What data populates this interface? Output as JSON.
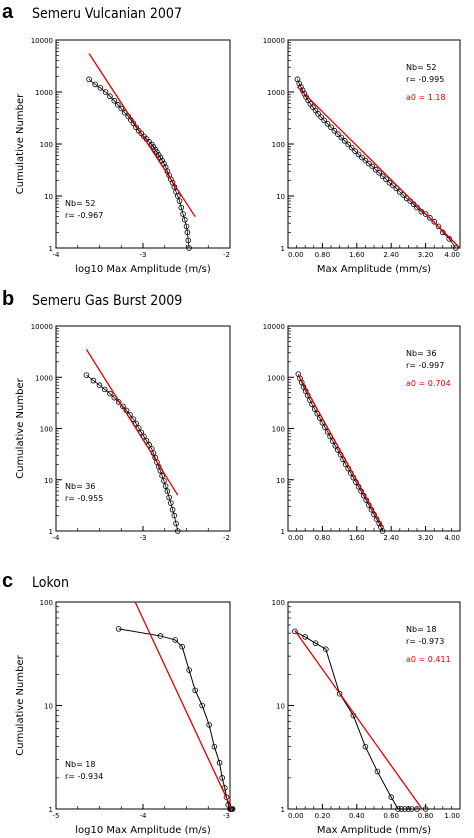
{
  "panels": [
    {
      "letter": "a",
      "title": "Semeru Vulcanian 2007"
    },
    {
      "letter": "b",
      "title": "Semeru Gas Burst 2009"
    },
    {
      "letter": "c",
      "title": "Lokon"
    }
  ],
  "colors": {
    "fit_line": "#e00000",
    "data": "#000000",
    "a0_text": "#e00000"
  },
  "chart_data": [
    {
      "type": "scatter",
      "panel": "a",
      "xscale": "log10",
      "yscale": "log",
      "xlabel": "log10 Max Amplitude (m/s)",
      "ylabel": "Cumulative Number",
      "xlim": [
        -4,
        -2
      ],
      "ylim": [
        1,
        10000
      ],
      "xticks": [
        -4,
        -3,
        -2
      ],
      "xtick_labels": [
        "-4",
        "-3",
        "-2"
      ],
      "yticks": [
        1,
        10,
        100,
        1000,
        10000
      ],
      "ytick_labels": [
        "1",
        "10",
        "100",
        "1000",
        "10000"
      ],
      "stats": [
        "Nb= 52",
        "r= -0.967"
      ],
      "series": [
        {
          "style": "markers",
          "x": [
            -3.62,
            -3.55,
            -3.49,
            -3.43,
            -3.38,
            -3.33,
            -3.29,
            -3.25,
            -3.21,
            -3.17,
            -3.14,
            -3.11,
            -3.08,
            -3.05,
            -3.02,
            -2.99,
            -2.96,
            -2.93,
            -2.9,
            -2.88,
            -2.86,
            -2.84,
            -2.82,
            -2.8,
            -2.78,
            -2.76,
            -2.74,
            -2.72,
            -2.7,
            -2.68,
            -2.66,
            -2.64,
            -2.62,
            -2.6,
            -2.58,
            -2.56,
            -2.54,
            -2.52,
            -2.5,
            -2.49,
            -2.48,
            -2.47
          ],
          "y": [
            1750,
            1400,
            1200,
            1000,
            830,
            680,
            570,
            480,
            400,
            340,
            290,
            250,
            210,
            180,
            160,
            140,
            125,
            110,
            98,
            88,
            78,
            70,
            62,
            55,
            48,
            42,
            36,
            30,
            25,
            21,
            18,
            15,
            12,
            10,
            8,
            6,
            4.5,
            3.5,
            2.6,
            2,
            1.4,
            1
          ]
        },
        {
          "style": "fit",
          "x": [
            -3.62,
            -2.4
          ],
          "y": [
            5500,
            4
          ]
        }
      ]
    },
    {
      "type": "scatter",
      "panel": "a",
      "xscale": "linear",
      "yscale": "log",
      "xlabel": "Max Amplitude (mm/s)",
      "ylabel": "",
      "xlim": [
        0,
        4
      ],
      "ylim": [
        1,
        10000
      ],
      "xticks": [
        0,
        0.8,
        1.6,
        2.4,
        3.2,
        4.0
      ],
      "xtick_labels": [
        "0.00",
        "0.80",
        "1.60",
        "2.40",
        "3.20",
        "4.00"
      ],
      "yticks": [
        1,
        10,
        100,
        1000,
        10000
      ],
      "ytick_labels": [
        "1",
        "10",
        "100",
        "1000",
        "10000"
      ],
      "stats": [
        "Nb= 52",
        "r= -0.995"
      ],
      "a0": "a0 = 1.18",
      "series": [
        {
          "style": "markers",
          "x": [
            0.22,
            0.26,
            0.3,
            0.34,
            0.38,
            0.42,
            0.47,
            0.52,
            0.58,
            0.64,
            0.7,
            0.77,
            0.84,
            0.92,
            1.0,
            1.08,
            1.16,
            1.24,
            1.32,
            1.4,
            1.48,
            1.56,
            1.64,
            1.72,
            1.8,
            1.88,
            1.96,
            2.04,
            2.12,
            2.2,
            2.28,
            2.36,
            2.44,
            2.52,
            2.6,
            2.68,
            2.76,
            2.84,
            2.92,
            3.0,
            3.1,
            3.2,
            3.3,
            3.4,
            3.5,
            3.6,
            3.75,
            3.9
          ],
          "y": [
            1750,
            1450,
            1250,
            1080,
            930,
            800,
            690,
            590,
            510,
            440,
            380,
            330,
            285,
            245,
            210,
            180,
            155,
            133,
            115,
            98,
            85,
            73,
            63,
            55,
            48,
            42,
            37,
            32,
            28,
            24,
            21,
            18,
            16,
            14,
            12,
            10.5,
            9,
            8,
            7,
            6,
            5,
            4.5,
            3.8,
            3.2,
            2.6,
            2,
            1.5,
            1
          ]
        },
        {
          "style": "fit",
          "x": [
            0.22,
            4.0
          ],
          "y": [
            1250,
            1
          ]
        }
      ]
    },
    {
      "type": "scatter",
      "panel": "b",
      "xscale": "log10",
      "yscale": "log",
      "xlabel": "",
      "ylabel": "Cumulative Number",
      "xlim": [
        -4,
        -2
      ],
      "ylim": [
        1,
        10000
      ],
      "xticks": [
        -4,
        -3,
        -2
      ],
      "xtick_labels": [
        "-4",
        "-3",
        "-2"
      ],
      "yticks": [
        1,
        10,
        100,
        1000,
        10000
      ],
      "ytick_labels": [
        "1",
        "10",
        "100",
        "1000",
        "10000"
      ],
      "stats": [
        "Nb= 36",
        "r= -0.955"
      ],
      "series": [
        {
          "style": "markers",
          "x": [
            -3.65,
            -3.57,
            -3.5,
            -3.44,
            -3.38,
            -3.33,
            -3.28,
            -3.23,
            -3.19,
            -3.15,
            -3.11,
            -3.08,
            -3.05,
            -3.02,
            -2.99,
            -2.96,
            -2.93,
            -2.9,
            -2.88,
            -2.86,
            -2.84,
            -2.82,
            -2.8,
            -2.78,
            -2.76,
            -2.74,
            -2.72,
            -2.7,
            -2.68,
            -2.66,
            -2.64,
            -2.62,
            -2.6
          ],
          "y": [
            1100,
            860,
            700,
            580,
            480,
            400,
            330,
            270,
            225,
            185,
            152,
            125,
            102,
            84,
            70,
            58,
            48,
            40,
            33,
            27,
            22,
            18,
            15,
            12,
            9.5,
            7.5,
            6,
            4.5,
            3.5,
            2.6,
            2,
            1.4,
            1
          ]
        },
        {
          "style": "fit",
          "x": [
            -3.65,
            -2.6
          ],
          "y": [
            3500,
            5
          ]
        }
      ]
    },
    {
      "type": "scatter",
      "panel": "b",
      "xscale": "linear",
      "yscale": "log",
      "xlabel": "",
      "ylabel": "",
      "xlim": [
        0,
        4
      ],
      "ylim": [
        1,
        10000
      ],
      "xticks": [
        0,
        0.8,
        1.6,
        2.4,
        3.2,
        4.0
      ],
      "xtick_labels": [
        "0.00",
        "0.80",
        "1.60",
        "2.40",
        "3.20",
        "4.00"
      ],
      "yticks": [
        1,
        10,
        100,
        1000,
        10000
      ],
      "ytick_labels": [
        "1",
        "10",
        "100",
        "1000",
        "10000"
      ],
      "stats": [
        "Nb= 36",
        "r= -0.997"
      ],
      "a0": "a0 = 0.704",
      "series": [
        {
          "style": "markers",
          "x": [
            0.24,
            0.28,
            0.32,
            0.36,
            0.41,
            0.46,
            0.51,
            0.56,
            0.62,
            0.68,
            0.74,
            0.8,
            0.86,
            0.92,
            0.98,
            1.04,
            1.1,
            1.16,
            1.22,
            1.28,
            1.34,
            1.4,
            1.46,
            1.52,
            1.58,
            1.64,
            1.7,
            1.76,
            1.82,
            1.88,
            1.94,
            2.0,
            2.06,
            2.12,
            2.16,
            2.2
          ],
          "y": [
            1150,
            950,
            790,
            650,
            540,
            440,
            360,
            295,
            240,
            195,
            160,
            130,
            106,
            86,
            70,
            57,
            46,
            38,
            31,
            25,
            20,
            16.5,
            13.5,
            11,
            9,
            7.3,
            6,
            4.9,
            4,
            3.2,
            2.6,
            2.1,
            1.7,
            1.4,
            1.2,
            1
          ]
        },
        {
          "style": "fit",
          "x": [
            0.24,
            2.2
          ],
          "y": [
            1100,
            1.2
          ]
        }
      ]
    },
    {
      "type": "line",
      "panel": "c",
      "xscale": "log10",
      "yscale": "log",
      "xlabel": "log10 Max Amplitude (m/s)",
      "ylabel": "Cumulative Number",
      "xlim": [
        -5,
        -3
      ],
      "ylim": [
        1,
        100
      ],
      "xticks": [
        -5,
        -4,
        -3
      ],
      "xtick_labels": [
        "-5",
        "-4",
        "-3"
      ],
      "yticks": [
        1,
        10,
        100
      ],
      "ytick_labels": [
        "1",
        "10",
        "100"
      ],
      "stats": [
        "Nb= 18",
        "r= -0.934"
      ],
      "series": [
        {
          "style": "markers-line",
          "x": [
            -4.28,
            -3.8,
            -3.63,
            -3.55,
            -3.47,
            -3.4,
            -3.32,
            -3.24,
            -3.18,
            -3.12,
            -3.09,
            -3.06,
            -3.04,
            -3.02,
            -3.0,
            -2.99,
            -2.98,
            -2.97
          ],
          "y": [
            55,
            47,
            43,
            37,
            22,
            14,
            10,
            6.5,
            4,
            2.8,
            2,
            1.6,
            1.3,
            1.1,
            1,
            1,
            1,
            1
          ]
        },
        {
          "style": "fit",
          "x": [
            -4.09,
            -2.98
          ],
          "y": [
            100,
            1
          ]
        }
      ]
    },
    {
      "type": "line",
      "panel": "c",
      "xscale": "linear",
      "yscale": "log",
      "xlabel": "Max Amplitude (mm/s)",
      "ylabel": "",
      "xlim": [
        0,
        1
      ],
      "ylim": [
        1,
        100
      ],
      "xticks": [
        0,
        0.2,
        0.4,
        0.6,
        0.8,
        1.0
      ],
      "xtick_labels": [
        "0.00",
        "0.20",
        "0.40",
        "0.60",
        "0.80",
        "1.00"
      ],
      "yticks": [
        1,
        10,
        100
      ],
      "ytick_labels": [
        "1",
        "10",
        "100"
      ],
      "stats": [
        "Nb= 18",
        "r= -0.973"
      ],
      "a0": "a0 = 0.411",
      "series": [
        {
          "style": "markers-line",
          "x": [
            0.04,
            0.1,
            0.16,
            0.22,
            0.3,
            0.38,
            0.45,
            0.52,
            0.6,
            0.64,
            0.66,
            0.68,
            0.7,
            0.72,
            0.75,
            0.8
          ],
          "y": [
            52,
            46,
            40,
            35,
            13,
            8,
            4,
            2.3,
            1.3,
            1,
            1,
            1,
            1,
            1,
            1,
            1
          ]
        },
        {
          "style": "fit",
          "x": [
            0.04,
            0.78
          ],
          "y": [
            53,
            1
          ]
        }
      ]
    }
  ]
}
